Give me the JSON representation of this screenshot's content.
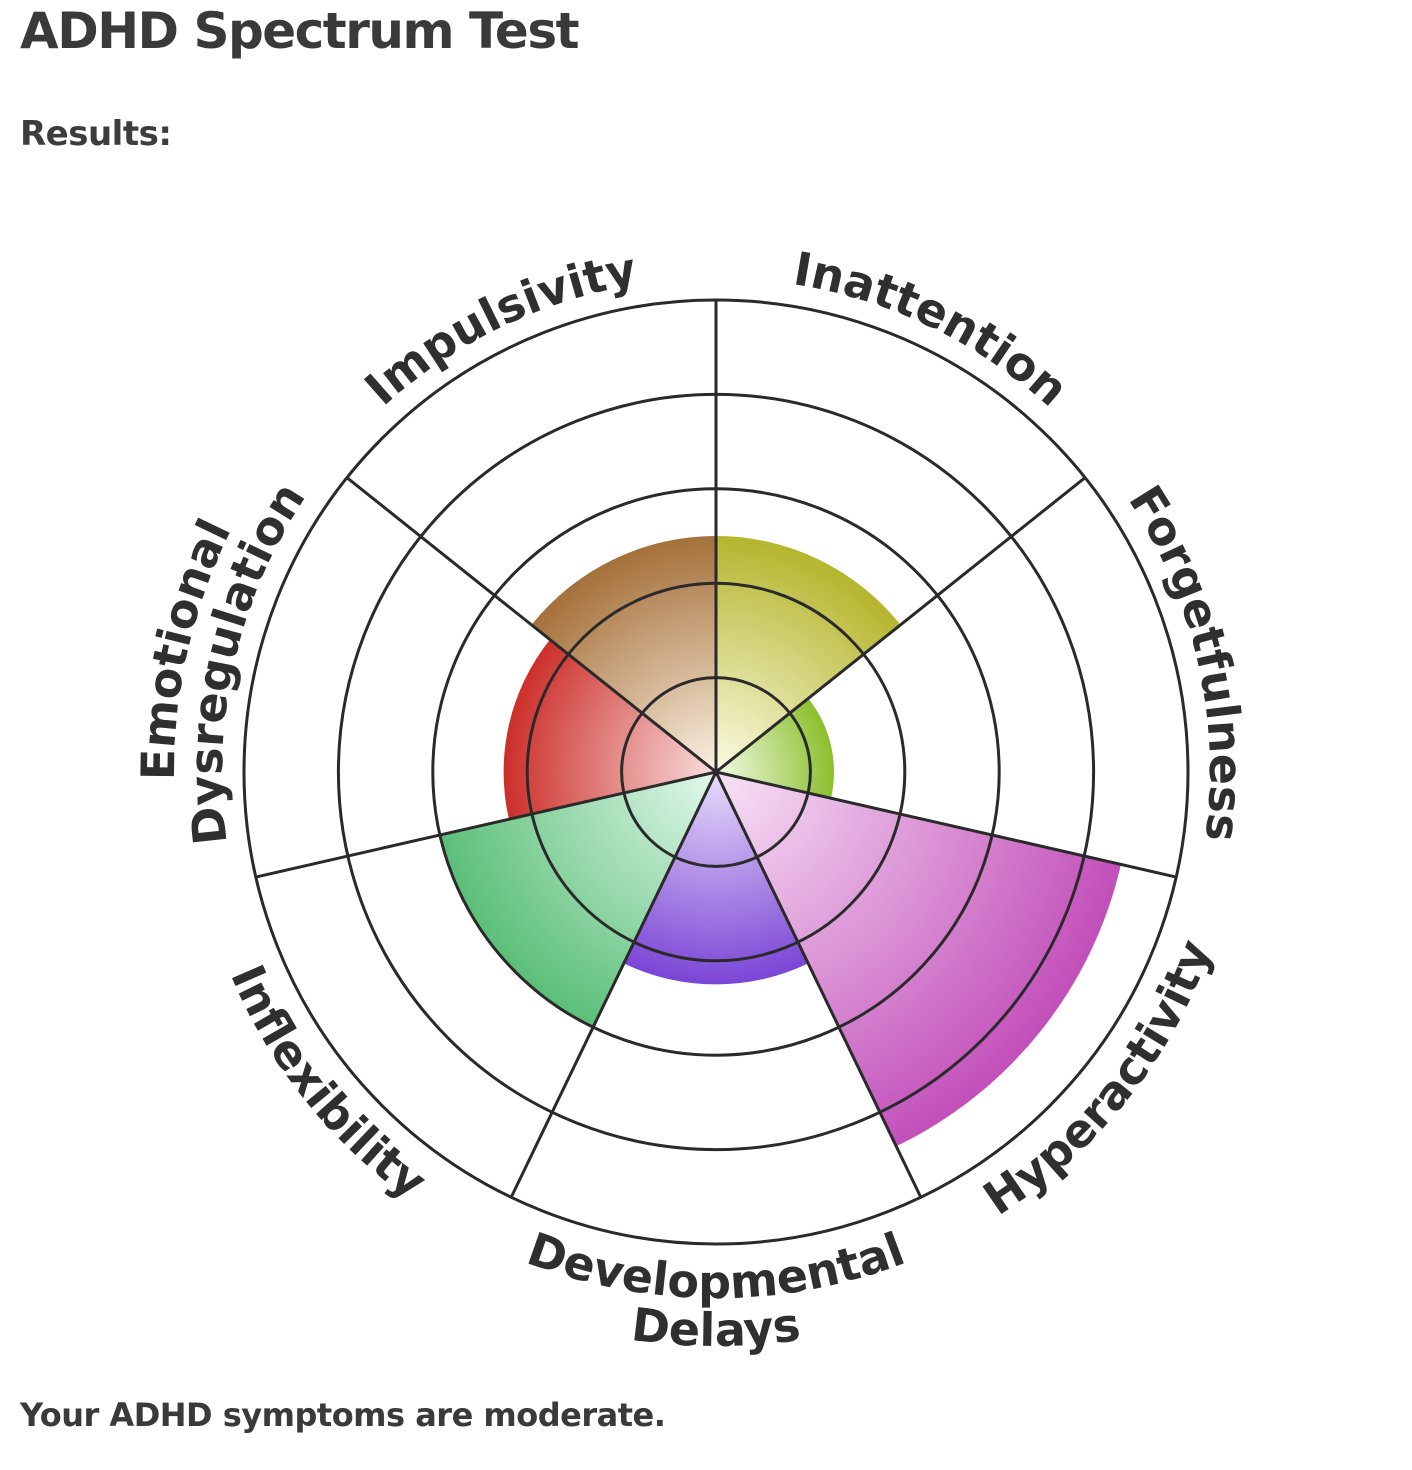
{
  "page": {
    "title": "ADHD Spectrum Test",
    "results_label": "Results:",
    "summary": "Your ADHD symptoms are moderate."
  },
  "chart_data": {
    "type": "polar-area",
    "levels": 5,
    "rlim": [
      0,
      5
    ],
    "grid": true,
    "categories": [
      {
        "label": [
          "Inattention"
        ],
        "value": 2.5,
        "color": "#b5b52e",
        "light": "#fbfbe3"
      },
      {
        "label": [
          "Forgetfulness"
        ],
        "value": 1.25,
        "color": "#8cbf2e",
        "light": "#f3fbe6"
      },
      {
        "label": [
          "Hyperactivity"
        ],
        "value": 4.4,
        "color": "#c24fba",
        "light": "#f8e3f6"
      },
      {
        "label": [
          "Developmental",
          "Delays"
        ],
        "value": 2.25,
        "color": "#7b45d6",
        "light": "#e8dcfa"
      },
      {
        "label": [
          "Inflexibility"
        ],
        "value": 3.0,
        "color": "#5bbf78",
        "light": "#e3f8ec"
      },
      {
        "label": [
          "Emotional",
          "Dysregulation"
        ],
        "value": 2.25,
        "color": "#cc2f2a",
        "light": "#f9dede"
      },
      {
        "label": [
          "Impulsivity"
        ],
        "value": 2.5,
        "color": "#a5703a",
        "light": "#fbf1e2"
      }
    ]
  }
}
